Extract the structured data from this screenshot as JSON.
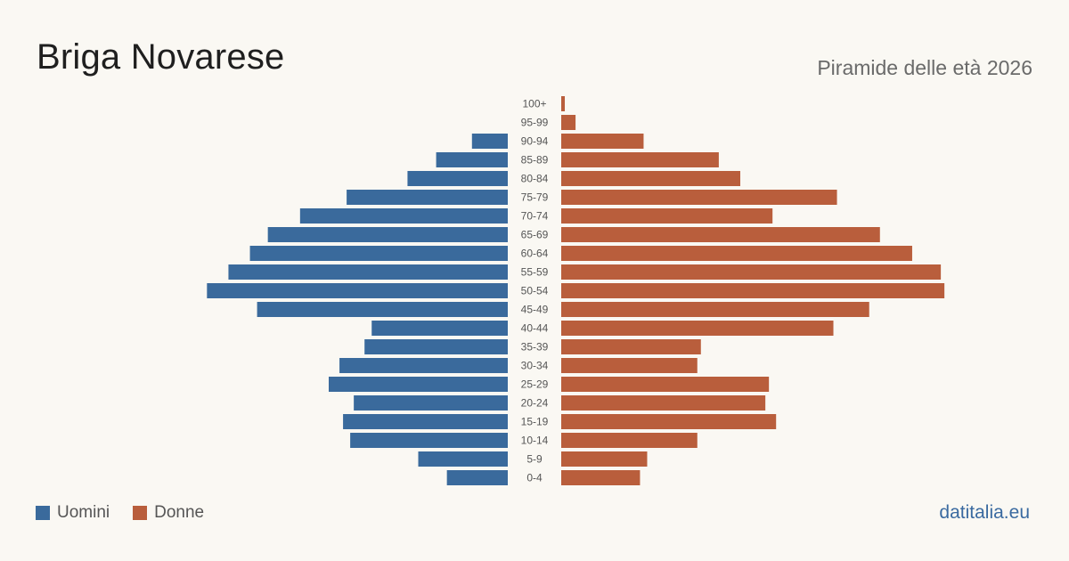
{
  "header": {
    "title": "Briga Novarese",
    "subtitle": "Piramide delle età 2026"
  },
  "legend": {
    "men_label": "Uomini",
    "women_label": "Donne"
  },
  "footer": {
    "source": "datitalia.eu"
  },
  "colors": {
    "men": "#3a6a9c",
    "women": "#b95e3c"
  },
  "chart_data": {
    "type": "bar",
    "orientation": "horizontal-pyramid",
    "categories": [
      "100+",
      "95-99",
      "90-94",
      "85-89",
      "80-84",
      "75-79",
      "70-74",
      "65-69",
      "60-64",
      "55-59",
      "50-54",
      "45-49",
      "40-44",
      "35-39",
      "30-34",
      "25-29",
      "20-24",
      "15-19",
      "10-14",
      "5-9",
      "0-4"
    ],
    "series": [
      {
        "name": "Uomini",
        "values": [
          0,
          0,
          10,
          20,
          28,
          45,
          58,
          67,
          72,
          78,
          84,
          70,
          38,
          40,
          47,
          50,
          43,
          46,
          44,
          25,
          17
        ]
      },
      {
        "name": "Donne",
        "values": [
          1,
          4,
          23,
          44,
          50,
          77,
          59,
          89,
          98,
          106,
          107,
          86,
          76,
          39,
          38,
          58,
          57,
          60,
          38,
          24,
          22
        ]
      }
    ]
  }
}
